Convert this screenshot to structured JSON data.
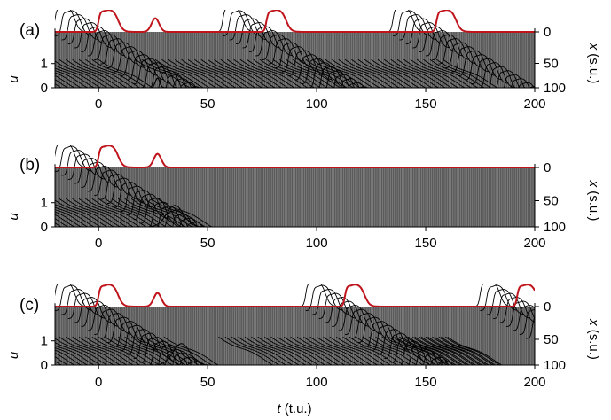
{
  "chart_data": [
    {
      "type": "line",
      "panel_label": "(a)",
      "t_range": [
        -20,
        200
      ],
      "u_range": [
        0,
        2
      ],
      "x_range": [
        0,
        100
      ],
      "t_ticks": [
        "0",
        "50",
        "100",
        "150",
        "200"
      ],
      "u_ticks": [
        "0",
        "1"
      ],
      "x_ticks": [
        "0",
        "50",
        "100"
      ],
      "show_t_ticklabels": true,
      "waves": [
        {
          "t_start": -20,
          "t_end": 40
        },
        {
          "t_start": 57,
          "t_end": 132
        },
        {
          "t_start": 135,
          "t_end": 200
        }
      ],
      "source_pulse_times": [
        0,
        77,
        155
      ],
      "source_bump_t": 26,
      "bottom_bump": {
        "t": 27,
        "height": 0.25
      }
    },
    {
      "type": "line",
      "panel_label": "(b)",
      "t_range": [
        -20,
        200
      ],
      "u_range": [
        0,
        2
      ],
      "x_range": [
        0,
        100
      ],
      "t_ticks": [
        "0",
        "50",
        "100",
        "150",
        "200"
      ],
      "u_ticks": [
        "0",
        "1"
      ],
      "x_ticks": [
        "0",
        "50",
        "100"
      ],
      "show_t_ticklabels": true,
      "waves": [
        {
          "t_start": -20,
          "t_end": 68
        }
      ],
      "source_pulse_times": [
        0
      ],
      "source_bump_t": 27,
      "collision": {
        "t": 35,
        "height": 1.1
      }
    },
    {
      "type": "line",
      "panel_label": "(c)",
      "t_range": [
        -20,
        200
      ],
      "u_range": [
        0,
        2
      ],
      "x_range": [
        0,
        100
      ],
      "t_ticks": [
        "0",
        "50",
        "100",
        "150",
        "200"
      ],
      "u_ticks": [
        "0",
        "1"
      ],
      "x_ticks": [
        "0",
        "50",
        "100"
      ],
      "show_t_ticklabels": true,
      "waves": [
        {
          "t_start": -20,
          "t_end": 70
        },
        {
          "t_start": 95,
          "t_end": 200
        },
        {
          "t_start": 175,
          "t_end": 200
        }
      ],
      "source_pulse_times": [
        0,
        113,
        192
      ],
      "source_bump_t": 27,
      "collision": {
        "t": 38,
        "height": 1.1
      }
    }
  ],
  "labels": {
    "u_axis": "u",
    "x_axis_var": "x",
    "x_axis_unit": "(s.u.)",
    "t_axis_var": "t",
    "t_axis_unit": "(t.u.)"
  },
  "colors": {
    "trace": "#000000",
    "source_trace": "#c0141c",
    "background": "#ffffff"
  }
}
